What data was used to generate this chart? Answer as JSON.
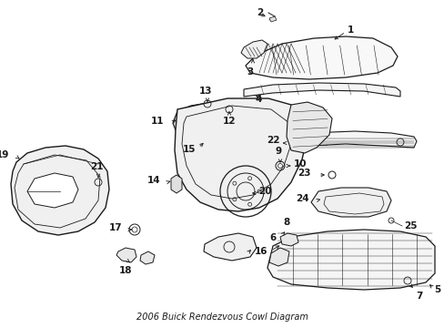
{
  "title": "2006 Buick Rendezvous Cowl Diagram",
  "bg_color": "#ffffff",
  "line_color": "#1a1a1a",
  "fig_width": 4.89,
  "fig_height": 3.6,
  "dpi": 100,
  "label_fs": 7.5
}
